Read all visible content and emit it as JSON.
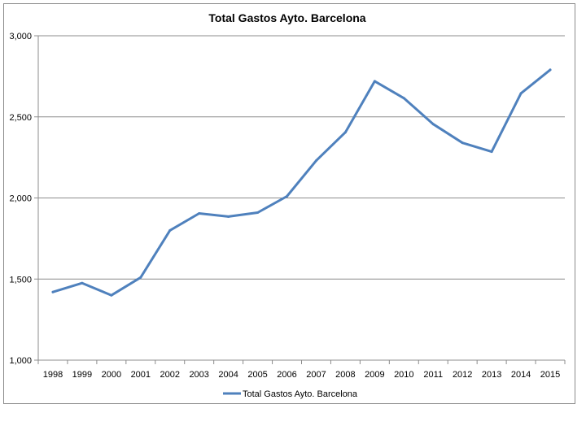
{
  "chart_data": {
    "type": "line",
    "title": "Total Gastos Ayto. Barcelona",
    "xlabel": "",
    "ylabel": "",
    "categories": [
      "1998",
      "1999",
      "2000",
      "2001",
      "2002",
      "2003",
      "2004",
      "2005",
      "2006",
      "2007",
      "2008",
      "2009",
      "2010",
      "2011",
      "2012",
      "2013",
      "2014",
      "2015"
    ],
    "yticks": [
      "1,000",
      "1,500",
      "2,000",
      "2,500",
      "3,000"
    ],
    "ylim": [
      1000,
      3000
    ],
    "grid": true,
    "legend_position": "bottom",
    "series": [
      {
        "name": "Total Gastos Ayto. Barcelona",
        "color": "#4f81bd",
        "values": [
          1420,
          1475,
          1400,
          1510,
          1800,
          1905,
          1885,
          1910,
          2010,
          2230,
          2405,
          2720,
          2615,
          2455,
          2340,
          2285,
          2645,
          2790
        ]
      }
    ]
  }
}
